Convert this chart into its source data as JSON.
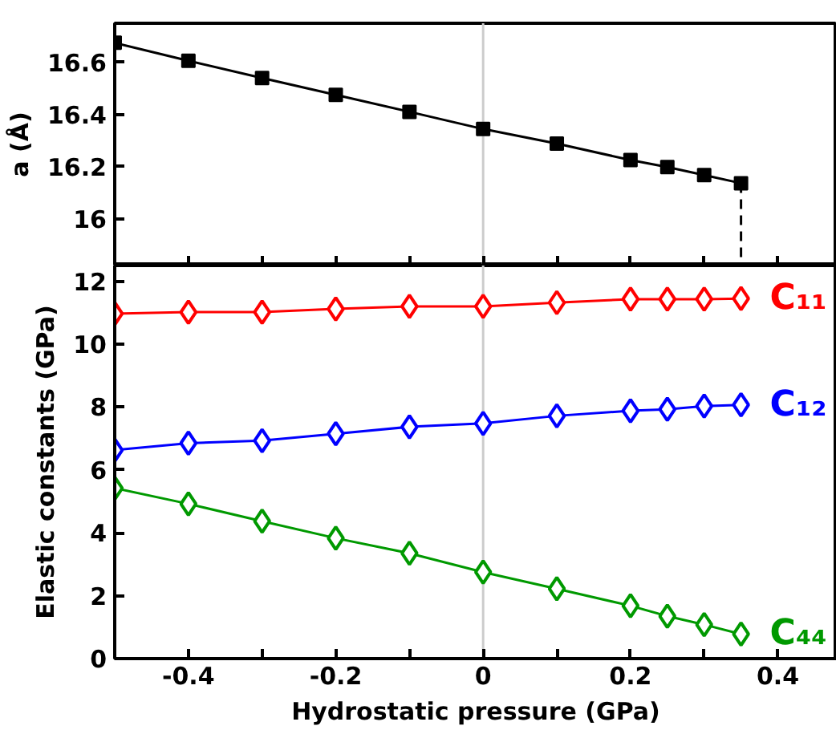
{
  "chart_data": [
    {
      "type": "line",
      "ylabel": "a (Å)",
      "xlim": [
        -0.5,
        0.48
      ],
      "ylim": [
        15.82,
        16.75
      ],
      "xticks": [
        {
          "value": -0.5,
          "label": null
        },
        {
          "value": -0.4,
          "label": null
        },
        {
          "value": -0.3,
          "label": null
        },
        {
          "value": -0.2,
          "label": null
        },
        {
          "value": -0.1,
          "label": null
        },
        {
          "value": 0,
          "label": null
        },
        {
          "value": 0.1,
          "label": null
        },
        {
          "value": 0.2,
          "label": null
        },
        {
          "value": 0.3,
          "label": null
        },
        {
          "value": 0.4,
          "label": null
        }
      ],
      "yticks": [
        16,
        16.2,
        16.4,
        16.6
      ],
      "tick_labels": "y",
      "grid": false,
      "ref_lines": [
        {
          "axis": "x",
          "value": 0,
          "label": null,
          "color": "#cccccc"
        }
      ],
      "series": [
        {
          "color": "#000000",
          "marker": "square",
          "line_style": "solid",
          "x": [
            -0.5,
            -0.4,
            -0.3,
            -0.2,
            -0.1,
            0,
            0.1,
            0.2,
            0.25,
            0.3,
            0.35
          ],
          "values": [
            16.675,
            16.606,
            16.54,
            16.475,
            16.41,
            16.344,
            16.288,
            16.225,
            16.198,
            16.167,
            16.136
          ]
        },
        {
          "color": "#000000",
          "marker": "none",
          "line_style": "dashed",
          "x": [
            0.35,
            0.35
          ],
          "values": [
            16.136,
            15.82
          ]
        }
      ]
    },
    {
      "type": "line",
      "xlabel": "Hydrostatic pressure (GPa)",
      "ylabel": "Elastic constants (GPa)",
      "xlim": [
        -0.5,
        0.48
      ],
      "ylim": [
        0,
        12.5
      ],
      "xticks": [
        {
          "value": -0.5,
          "label": null
        },
        -0.4,
        {
          "value": -0.3,
          "label": null
        },
        -0.2,
        {
          "value": -0.1,
          "label": null
        },
        0,
        {
          "value": 0.1,
          "label": null
        },
        0.2,
        {
          "value": 0.3,
          "label": null
        },
        0.4
      ],
      "yticks": [
        0,
        2,
        4,
        6,
        8,
        10,
        12
      ],
      "grid": false,
      "marker": "diamond",
      "x": [
        -0.5,
        -0.4,
        -0.3,
        -0.2,
        -0.1,
        0,
        0.1,
        0.2,
        0.25,
        0.3,
        0.35
      ],
      "ref_lines": [
        {
          "axis": "x",
          "value": 0,
          "label": null,
          "color": "#cccccc"
        }
      ],
      "series": [
        {
          "name": "C₁₁",
          "color": "#ff0000",
          "values": [
            10.97,
            11.02,
            11.02,
            11.12,
            11.2,
            11.2,
            11.32,
            11.43,
            11.43,
            11.43,
            11.45
          ]
        },
        {
          "name": "C₁₂",
          "color": "#0000ff",
          "values": [
            6.63,
            6.85,
            6.93,
            7.15,
            7.37,
            7.48,
            7.72,
            7.88,
            7.93,
            8.03,
            8.07
          ]
        },
        {
          "name": "C₄₄",
          "color": "#009900",
          "values": [
            5.42,
            4.92,
            4.37,
            3.83,
            3.35,
            2.75,
            2.22,
            1.68,
            1.35,
            1.08,
            0.78
          ]
        }
      ]
    }
  ]
}
